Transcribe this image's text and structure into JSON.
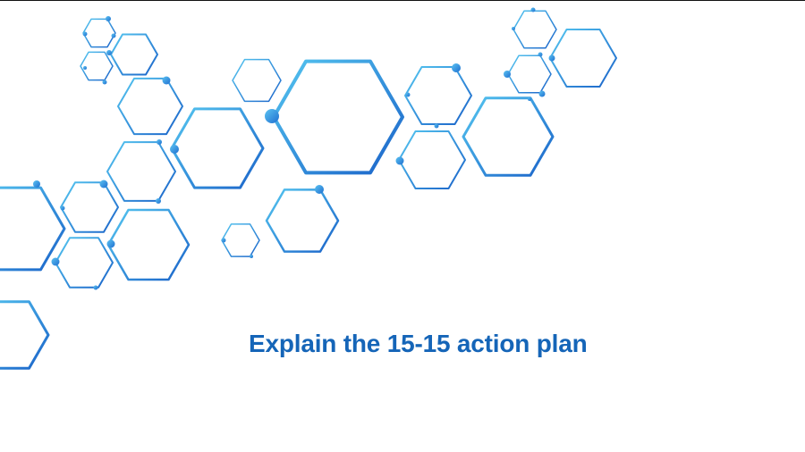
{
  "slide": {
    "title": "Explain the 15-15 action plan",
    "decoration": "hexagon-network",
    "colors": {
      "title": "#1565b8",
      "hexagon_light": "#4fc0ee",
      "hexagon_dark": "#1a6bd0",
      "node": "#2d8fe0",
      "background": "#ffffff"
    }
  }
}
